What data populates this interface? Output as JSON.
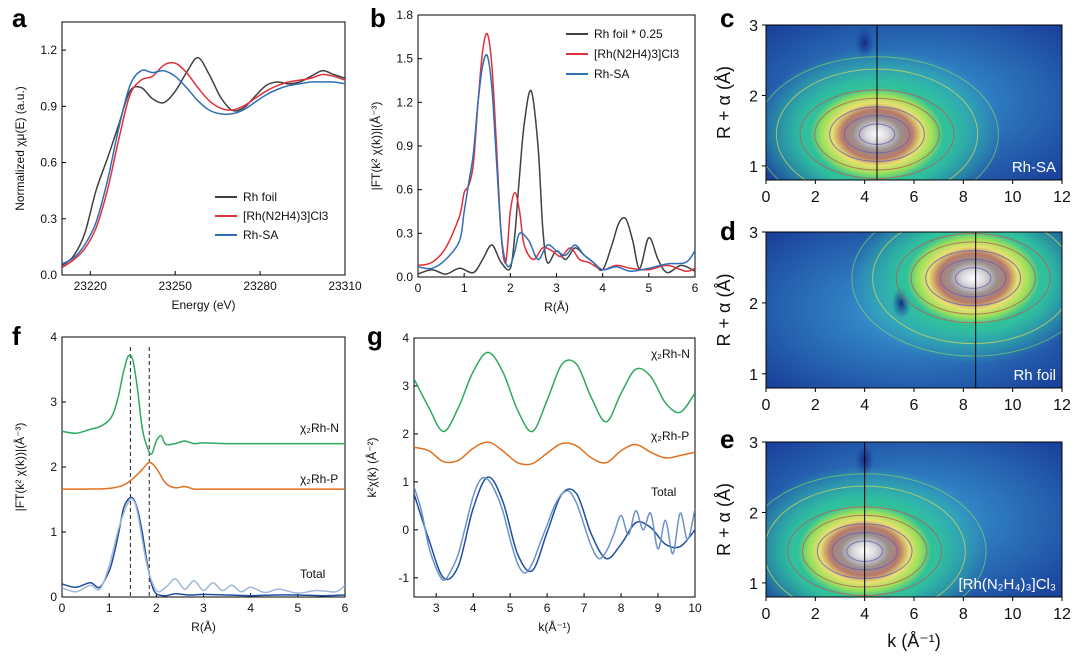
{
  "chart_data": [
    {
      "panel": "a",
      "type": "line",
      "xlabel": "Energy (eV)",
      "ylabel": "Normalized χμ(E) (a.u.)",
      "xlim": [
        23210,
        23310
      ],
      "ylim": [
        0,
        1.35
      ],
      "xticks": [
        "23220",
        "23250",
        "23280",
        "23310"
      ],
      "yticks": [
        "0.0",
        "0.3",
        "0.6",
        "0.9",
        "1.2"
      ],
      "legend": [
        "Rh foil",
        "[Rh(N2H4)3]Cl3",
        "Rh-SA"
      ],
      "series": [
        {
          "name": "Rh foil",
          "color": "#404040",
          "x": [
            23210,
            23214,
            23218,
            23222,
            23226,
            23230,
            23234,
            23238,
            23242,
            23246,
            23250,
            23254,
            23258,
            23262,
            23266,
            23270,
            23274,
            23278,
            23282,
            23286,
            23290,
            23294,
            23298,
            23302,
            23306,
            23310
          ],
          "y": [
            0.05,
            0.1,
            0.22,
            0.45,
            0.62,
            0.8,
            0.98,
            1.0,
            0.94,
            0.92,
            0.98,
            1.08,
            1.16,
            1.07,
            0.95,
            0.88,
            0.89,
            0.95,
            1.01,
            1.03,
            1.02,
            1.03,
            1.06,
            1.09,
            1.07,
            1.05
          ]
        },
        {
          "name": "[Rh(N2H4)3]Cl3",
          "color": "#e0303a",
          "x": [
            23210,
            23214,
            23218,
            23222,
            23226,
            23230,
            23234,
            23238,
            23242,
            23246,
            23250,
            23254,
            23258,
            23262,
            23266,
            23270,
            23274,
            23278,
            23282,
            23286,
            23290,
            23294,
            23298,
            23302,
            23306,
            23310
          ],
          "y": [
            0.04,
            0.08,
            0.14,
            0.25,
            0.45,
            0.72,
            0.96,
            1.04,
            1.06,
            1.12,
            1.13,
            1.08,
            1.0,
            0.93,
            0.89,
            0.88,
            0.9,
            0.94,
            0.98,
            1.01,
            1.03,
            1.04,
            1.05,
            1.07,
            1.06,
            1.04
          ]
        },
        {
          "name": "Rh-SA",
          "color": "#2f6fb8",
          "x": [
            23210,
            23214,
            23218,
            23222,
            23226,
            23230,
            23234,
            23238,
            23242,
            23246,
            23250,
            23254,
            23258,
            23262,
            23266,
            23270,
            23274,
            23278,
            23282,
            23286,
            23290,
            23294,
            23298,
            23302,
            23306,
            23310
          ],
          "y": [
            0.06,
            0.09,
            0.16,
            0.28,
            0.5,
            0.78,
            1.01,
            1.09,
            1.08,
            1.09,
            1.06,
            1.0,
            0.93,
            0.88,
            0.86,
            0.86,
            0.88,
            0.92,
            0.96,
            0.99,
            1.01,
            1.02,
            1.03,
            1.03,
            1.03,
            1.02
          ]
        }
      ]
    },
    {
      "panel": "b",
      "type": "line",
      "xlabel": "R(Å)",
      "ylabel": "|FT(k² χ(k))|(Å⁻³)",
      "xlim": [
        0,
        6
      ],
      "ylim": [
        0,
        1.8
      ],
      "xticks": [
        "0",
        "1",
        "2",
        "3",
        "4",
        "5",
        "6"
      ],
      "yticks": [
        "0.0",
        "0.3",
        "0.6",
        "0.9",
        "1.2",
        "1.5",
        "1.8"
      ],
      "legend": [
        "Rh foil * 0.25",
        "[Rh(N2H4)3]Cl3",
        "Rh-SA"
      ],
      "series": [
        {
          "name": "Rh foil * 0.25",
          "color": "#404040",
          "x": [
            0,
            0.3,
            0.6,
            0.9,
            1.2,
            1.4,
            1.6,
            1.8,
            2.0,
            2.1,
            2.2,
            2.3,
            2.45,
            2.6,
            2.7,
            2.8,
            3.0,
            3.2,
            3.4,
            3.6,
            3.8,
            4.0,
            4.2,
            4.35,
            4.5,
            4.65,
            4.8,
            5.0,
            5.2,
            5.4,
            5.7,
            6.0
          ],
          "y": [
            0.02,
            0.05,
            0.02,
            0.06,
            0.03,
            0.12,
            0.22,
            0.1,
            0.06,
            0.3,
            0.7,
            1.05,
            1.28,
            0.9,
            0.35,
            0.1,
            0.18,
            0.12,
            0.2,
            0.15,
            0.1,
            0.05,
            0.22,
            0.37,
            0.4,
            0.25,
            0.06,
            0.27,
            0.12,
            0.03,
            0.08,
            0.04
          ]
        },
        {
          "name": "[Rh(N2H4)3]Cl3",
          "color": "#e0303a",
          "x": [
            0,
            0.3,
            0.6,
            0.9,
            1.0,
            1.1,
            1.2,
            1.3,
            1.4,
            1.5,
            1.6,
            1.7,
            1.8,
            1.9,
            2.0,
            2.1,
            2.2,
            2.3,
            2.5,
            2.7,
            2.9,
            3.1,
            3.3,
            3.5,
            3.7,
            4.0,
            4.3,
            4.6,
            5.0,
            5.4,
            5.8,
            6.0
          ],
          "y": [
            0.08,
            0.1,
            0.2,
            0.42,
            0.58,
            0.63,
            0.78,
            1.2,
            1.55,
            1.67,
            1.45,
            0.9,
            0.3,
            0.1,
            0.45,
            0.58,
            0.45,
            0.22,
            0.12,
            0.2,
            0.18,
            0.14,
            0.2,
            0.12,
            0.1,
            0.05,
            0.08,
            0.06,
            0.05,
            0.08,
            0.04,
            0.06
          ]
        },
        {
          "name": "Rh-SA",
          "color": "#2f6fb8",
          "x": [
            0,
            0.3,
            0.6,
            0.9,
            1.0,
            1.1,
            1.2,
            1.3,
            1.4,
            1.5,
            1.6,
            1.7,
            1.8,
            1.9,
            2.0,
            2.1,
            2.2,
            2.4,
            2.6,
            2.8,
            3.0,
            3.2,
            3.4,
            3.6,
            3.8,
            4.0,
            4.3,
            4.6,
            5.0,
            5.4,
            5.8,
            6.0
          ],
          "y": [
            0.07,
            0.06,
            0.12,
            0.25,
            0.45,
            0.65,
            0.85,
            1.2,
            1.45,
            1.52,
            1.3,
            0.8,
            0.3,
            0.1,
            0.08,
            0.18,
            0.3,
            0.25,
            0.12,
            0.22,
            0.18,
            0.15,
            0.22,
            0.15,
            0.1,
            0.05,
            0.07,
            0.04,
            0.06,
            0.09,
            0.1,
            0.18
          ]
        }
      ]
    },
    {
      "panel": "c",
      "type": "heatmap",
      "label": "Rh-SA",
      "xlabel": "",
      "ylabel": "R + α (Å)",
      "xlim": [
        0,
        12
      ],
      "ylim": [
        0.8,
        3
      ],
      "xticks": [
        "0",
        "2",
        "4",
        "6",
        "8",
        "10",
        "12"
      ],
      "yticks": [
        "1",
        "2",
        "3"
      ],
      "peak": {
        "k": 4.5,
        "R": 1.45
      },
      "marker_k": 4.5
    },
    {
      "panel": "d",
      "type": "heatmap",
      "label": "Rh foil",
      "xlabel": "",
      "ylabel": "R + α (Å)",
      "xlim": [
        0,
        12
      ],
      "ylim": [
        0.8,
        3
      ],
      "xticks": [
        "0",
        "2",
        "4",
        "6",
        "8",
        "10",
        "12"
      ],
      "yticks": [
        "1",
        "2",
        "3"
      ],
      "peak": {
        "k": 8.4,
        "R": 2.35
      },
      "marker_k": 8.5
    },
    {
      "panel": "e",
      "type": "heatmap",
      "label": "[Rh(N₂H₄)₃]Cl₃",
      "xlabel": "k (Å⁻¹)",
      "ylabel": "R + α (Å)",
      "xlim": [
        0,
        12
      ],
      "ylim": [
        0.8,
        3
      ],
      "xticks": [
        "0",
        "2",
        "4",
        "6",
        "8",
        "10",
        "12"
      ],
      "yticks": [
        "1",
        "2",
        "3"
      ],
      "peak": {
        "k": 4.0,
        "R": 1.45
      },
      "marker_k": 4.0
    },
    {
      "panel": "f",
      "type": "line",
      "xlabel": "R(Å)",
      "ylabel": "|FT(k² χ(k))|(Å⁻³)",
      "xlim": [
        0,
        6
      ],
      "ylim": [
        0,
        4
      ],
      "xticks": [
        "0",
        "1",
        "2",
        "3",
        "4",
        "5",
        "6"
      ],
      "yticks": [
        "0",
        "1",
        "2",
        "3",
        "4"
      ],
      "labels": {
        "rhn": "χ₂Rh-N",
        "rhp": "χ₂Rh-P",
        "total": "Total"
      },
      "dashed_lines_x": [
        1.45,
        1.85
      ],
      "series": [
        {
          "name": "χ2 Rh-N",
          "color": "#2fa860",
          "x": [
            0,
            0.3,
            0.6,
            0.8,
            1.0,
            1.1,
            1.2,
            1.3,
            1.4,
            1.5,
            1.6,
            1.7,
            1.8,
            1.9,
            2.0,
            2.1,
            2.2,
            2.4,
            2.6,
            2.8,
            3.0,
            3.5,
            4.0,
            5.0,
            6.0
          ],
          "y": [
            2.55,
            2.52,
            2.58,
            2.62,
            2.72,
            2.85,
            3.1,
            3.45,
            3.7,
            3.65,
            3.2,
            2.6,
            2.32,
            2.2,
            2.4,
            2.48,
            2.35,
            2.36,
            2.4,
            2.36,
            2.37,
            2.36,
            2.36,
            2.36,
            2.36
          ]
        },
        {
          "name": "χ2 Rh-P",
          "color": "#e07020",
          "x": [
            0,
            0.5,
            1.0,
            1.3,
            1.5,
            1.7,
            1.85,
            2.0,
            2.2,
            2.4,
            2.6,
            2.8,
            3.0,
            3.5,
            4.0,
            5.0,
            6.0
          ],
          "y": [
            1.66,
            1.66,
            1.67,
            1.72,
            1.82,
            1.96,
            2.07,
            1.98,
            1.75,
            1.68,
            1.7,
            1.66,
            1.66,
            1.66,
            1.66,
            1.66,
            1.66
          ]
        },
        {
          "name": "Total",
          "color": "#1f4ea0",
          "x": [
            0,
            0.3,
            0.6,
            0.8,
            1.0,
            1.1,
            1.2,
            1.3,
            1.4,
            1.5,
            1.6,
            1.7,
            1.8,
            1.9,
            2.0,
            2.2,
            2.4,
            2.7,
            3.0,
            3.5,
            4.0,
            4.5,
            5.0,
            5.5,
            6.0
          ],
          "y": [
            0.2,
            0.15,
            0.22,
            0.15,
            0.4,
            0.65,
            0.98,
            1.35,
            1.5,
            1.52,
            1.35,
            1.0,
            0.55,
            0.2,
            0.05,
            0.02,
            0.05,
            0.03,
            0.04,
            0.03,
            0.02,
            0.03,
            0.03,
            0.02,
            0.03
          ]
        },
        {
          "name": "Total (exp)",
          "color": "#9fb7d8",
          "x": [
            0,
            0.3,
            0.6,
            0.8,
            1.0,
            1.2,
            1.4,
            1.5,
            1.6,
            1.8,
            2.0,
            2.2,
            2.4,
            2.6,
            2.8,
            3.0,
            3.2,
            3.4,
            3.6,
            3.8,
            4.0,
            4.3,
            4.6,
            5.0,
            5.4,
            5.8,
            6.0
          ],
          "y": [
            0.14,
            0.08,
            0.18,
            0.12,
            0.48,
            1.05,
            1.45,
            1.5,
            1.3,
            0.5,
            0.1,
            0.15,
            0.28,
            0.12,
            0.25,
            0.1,
            0.22,
            0.1,
            0.18,
            0.08,
            0.15,
            0.07,
            0.12,
            0.06,
            0.1,
            0.08,
            0.18
          ]
        }
      ]
    },
    {
      "panel": "g",
      "type": "line",
      "xlabel": "k(Å⁻¹)",
      "ylabel": "k²χ(k) (Å⁻²)",
      "xlim": [
        2.4,
        10
      ],
      "ylim": [
        -1.4,
        4
      ],
      "xticks": [
        "3",
        "4",
        "5",
        "6",
        "7",
        "8",
        "9",
        "10"
      ],
      "yticks": [
        "-1",
        "0",
        "1",
        "2",
        "3",
        "4"
      ],
      "labels": {
        "rhn": "χ₂Rh-N",
        "rhp": "χ₂Rh-P",
        "total": "Total"
      },
      "series": [
        {
          "name": "χ2 Rh-N",
          "color": "#2fa860",
          "x": [
            2.4,
            2.8,
            3.2,
            3.6,
            4.0,
            4.4,
            4.8,
            5.2,
            5.6,
            6.0,
            6.4,
            6.8,
            7.2,
            7.6,
            8.0,
            8.4,
            8.8,
            9.2,
            9.6,
            10.0
          ],
          "y": [
            3.15,
            2.55,
            2.05,
            2.55,
            3.3,
            3.7,
            3.3,
            2.5,
            2.05,
            2.7,
            3.45,
            3.45,
            2.75,
            2.25,
            2.85,
            3.35,
            3.2,
            2.65,
            2.45,
            2.85
          ]
        },
        {
          "name": "χ2 Rh-P",
          "color": "#e07020",
          "x": [
            2.4,
            2.8,
            3.2,
            3.6,
            4.0,
            4.4,
            4.8,
            5.2,
            5.6,
            6.0,
            6.4,
            6.8,
            7.2,
            7.6,
            8.0,
            8.4,
            8.8,
            9.2,
            9.6,
            10.0
          ],
          "y": [
            1.72,
            1.65,
            1.42,
            1.45,
            1.7,
            1.83,
            1.65,
            1.4,
            1.38,
            1.6,
            1.8,
            1.75,
            1.5,
            1.4,
            1.65,
            1.78,
            1.62,
            1.5,
            1.55,
            1.62
          ]
        },
        {
          "name": "Total (fit)",
          "color": "#1f4ea0",
          "x": [
            2.4,
            2.8,
            3.2,
            3.6,
            4.0,
            4.4,
            4.8,
            5.2,
            5.6,
            6.0,
            6.4,
            6.8,
            7.2,
            7.6,
            8.0,
            8.4,
            8.8,
            9.2,
            9.6,
            10.0
          ],
          "y": [
            0.75,
            -0.2,
            -1.0,
            -0.75,
            0.45,
            1.1,
            0.6,
            -0.5,
            -0.85,
            -0.05,
            0.75,
            0.75,
            -0.1,
            -0.6,
            -0.3,
            0.15,
            0.05,
            -0.3,
            -0.35,
            0.0
          ]
        },
        {
          "name": "Total (exp)",
          "color": "#6c93c8",
          "x": [
            2.4,
            2.6,
            2.8,
            3.0,
            3.2,
            3.4,
            3.6,
            3.8,
            4.0,
            4.2,
            4.4,
            4.6,
            4.8,
            5.0,
            5.2,
            5.4,
            5.6,
            5.8,
            6.0,
            6.2,
            6.4,
            6.6,
            6.8,
            7.0,
            7.2,
            7.4,
            7.6,
            7.8,
            8.0,
            8.2,
            8.4,
            8.6,
            8.8,
            9.0,
            9.2,
            9.4,
            9.6,
            9.8,
            10.0
          ],
          "y": [
            0.9,
            0.4,
            -0.35,
            -0.8,
            -1.05,
            -0.85,
            -0.5,
            0.1,
            0.7,
            1.05,
            1.05,
            0.8,
            0.4,
            -0.2,
            -0.7,
            -0.9,
            -0.7,
            -0.3,
            0.1,
            0.5,
            0.75,
            0.8,
            0.55,
            0.1,
            -0.35,
            -0.6,
            -0.45,
            -0.1,
            0.3,
            -0.1,
            0.4,
            0.0,
            0.35,
            -0.4,
            0.2,
            -0.5,
            0.35,
            -0.2,
            0.45
          ]
        }
      ]
    }
  ]
}
